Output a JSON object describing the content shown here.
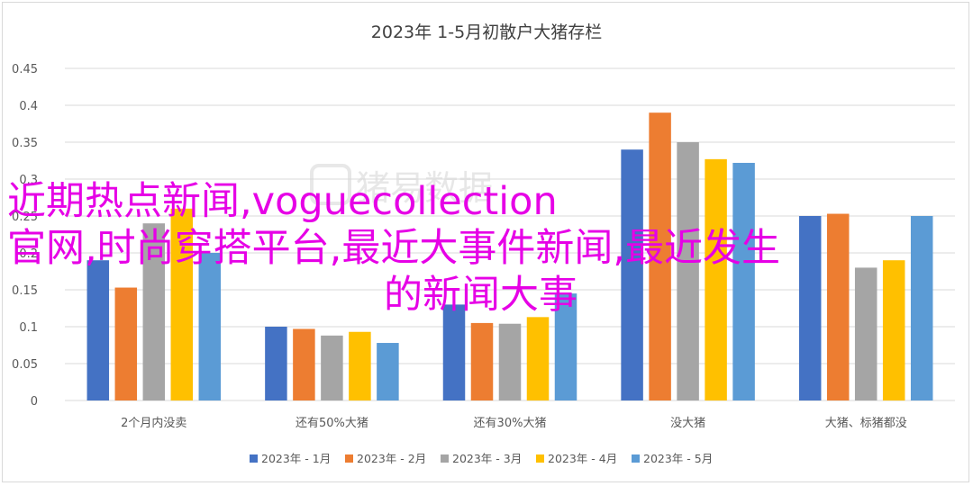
{
  "chart_data": {
    "type": "bar",
    "title": "2023年 1-5月初散户大猪存栏",
    "categories": [
      "2个月内没卖",
      "还有50%大猪",
      "还有30%大猪",
      "没大猪",
      "大猪、标猪都没"
    ],
    "series": [
      {
        "name": "2023年 - 1月",
        "color": "#4472c4",
        "values": [
          0.19,
          0.1,
          0.13,
          0.34,
          0.25
        ]
      },
      {
        "name": "2023年 - 2月",
        "color": "#ed7d31",
        "values": [
          0.153,
          0.097,
          0.105,
          0.39,
          0.253
        ]
      },
      {
        "name": "2023年 - 3月",
        "color": "#a5a5a5",
        "values": [
          0.24,
          0.088,
          0.104,
          0.35,
          0.18
        ]
      },
      {
        "name": "2023年 - 4月",
        "color": "#ffc000",
        "values": [
          0.26,
          0.093,
          0.113,
          0.327,
          0.19
        ]
      },
      {
        "name": "2023年 - 5月",
        "color": "#5b9bd5",
        "values": [
          0.2,
          0.078,
          0.145,
          0.322,
          0.25
        ]
      }
    ],
    "ylim": [
      0,
      0.45
    ],
    "yticks": [
      "0",
      "0.05",
      "0.1",
      "0.15",
      "0.2",
      "0.25",
      "0.3",
      "0.35",
      "0.4",
      "0.45"
    ],
    "grid": true,
    "legend": "bottom",
    "xlabel": "",
    "ylabel": ""
  },
  "overlay": {
    "line1": "近期热点新闻,voguecollection",
    "line2": "官网,时尚穿搭平台,最近大事件新闻,最近发生",
    "line3": "的新闻大事"
  },
  "watermark": "猪易数据",
  "colors": {
    "grid": "#d9d9d9",
    "axis_text": "#595959",
    "overlay_text": "#e600e6"
  }
}
